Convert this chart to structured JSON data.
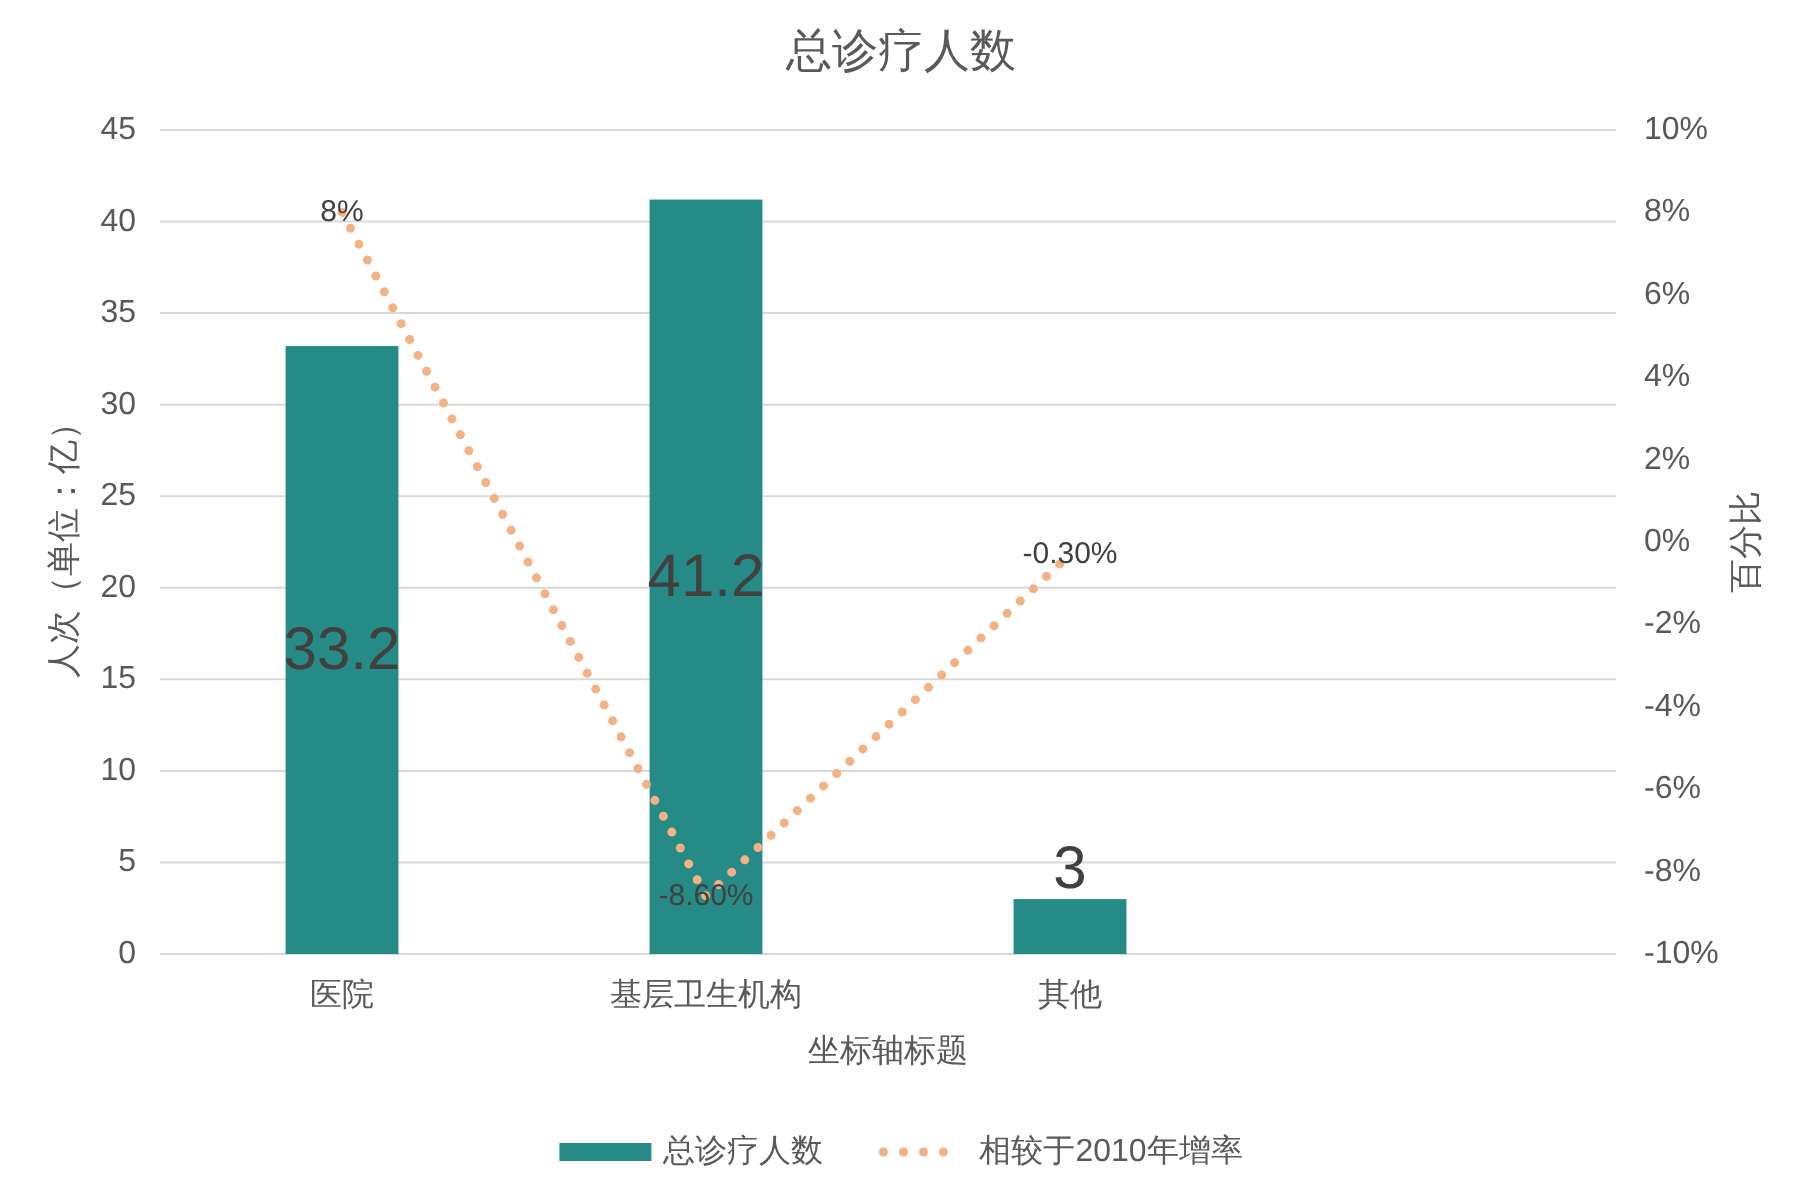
{
  "chart_data": {
    "type": "bar",
    "title": "总诊疗人数",
    "xlabel": "坐标轴标题",
    "ylabel": "人次（单位：亿）",
    "y2label": "百分比",
    "categories": [
      "医院",
      "基层卫生机构",
      "其他",
      null
    ],
    "series": [
      {
        "name": "总诊疗人数",
        "color": "#268a86",
        "values": [
          33.2,
          41.2,
          3,
          null
        ],
        "value_labels": [
          "33.2",
          "41.2",
          "3",
          null
        ]
      },
      {
        "name": "相较于2010年增率",
        "type": "line",
        "axis": "y2",
        "line_style": "dotted",
        "color": "#f4b183",
        "values": [
          8,
          -8.6,
          -0.3,
          null
        ],
        "value_labels": [
          "8%",
          "-8.60%",
          "-0.30%",
          null
        ]
      }
    ],
    "ylim": [
      0,
      45
    ],
    "yticks": [
      0,
      5,
      10,
      15,
      20,
      25,
      30,
      35,
      40,
      45
    ],
    "y2lim": [
      -10,
      10
    ],
    "y2ticks": [
      {
        "value": -10,
        "label": "-10%"
      },
      {
        "value": -8,
        "label": "-8%"
      },
      {
        "value": -6,
        "label": "-6%"
      },
      {
        "value": -4,
        "label": "-4%"
      },
      {
        "value": -2,
        "label": "-2%"
      },
      {
        "value": 0,
        "label": "0%"
      },
      {
        "value": 2,
        "label": "2%"
      },
      {
        "value": 4,
        "label": "4%"
      },
      {
        "value": 6,
        "label": "6%"
      },
      {
        "value": 8,
        "label": "8%"
      },
      {
        "value": 10,
        "label": "10%"
      }
    ],
    "grid": "y",
    "legend": "bottom"
  }
}
